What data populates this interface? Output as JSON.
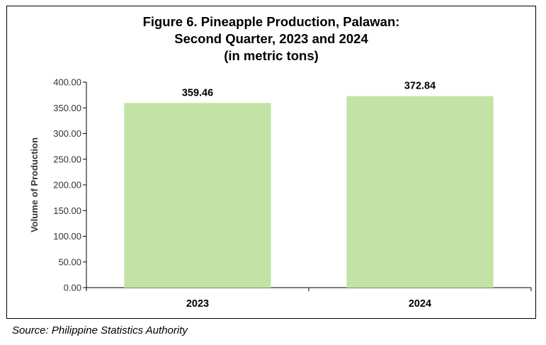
{
  "chart_data": {
    "type": "bar",
    "title_lines": [
      "Figure 6. Pineapple Production, Palawan:",
      "Second Quarter, 2023 and 2024",
      "(in metric tons)"
    ],
    "categories": [
      "2023",
      "2024"
    ],
    "values": [
      359.46,
      372.84
    ],
    "data_labels": [
      "359.46",
      "372.84"
    ],
    "ylabel": "Volume of Production",
    "xlabel": "",
    "ylim": [
      0,
      400
    ],
    "yticks": [
      0,
      50,
      100,
      150,
      200,
      250,
      300,
      350,
      400
    ],
    "ytick_labels": [
      "0.00",
      "50.00",
      "100.00",
      "150.00",
      "200.00",
      "250.00",
      "300.00",
      "350.00",
      "400.00"
    ],
    "bar_color": "#c3e2a6",
    "grid": false,
    "legend": "none"
  },
  "source": "Source: Philippine Statistics Authority"
}
